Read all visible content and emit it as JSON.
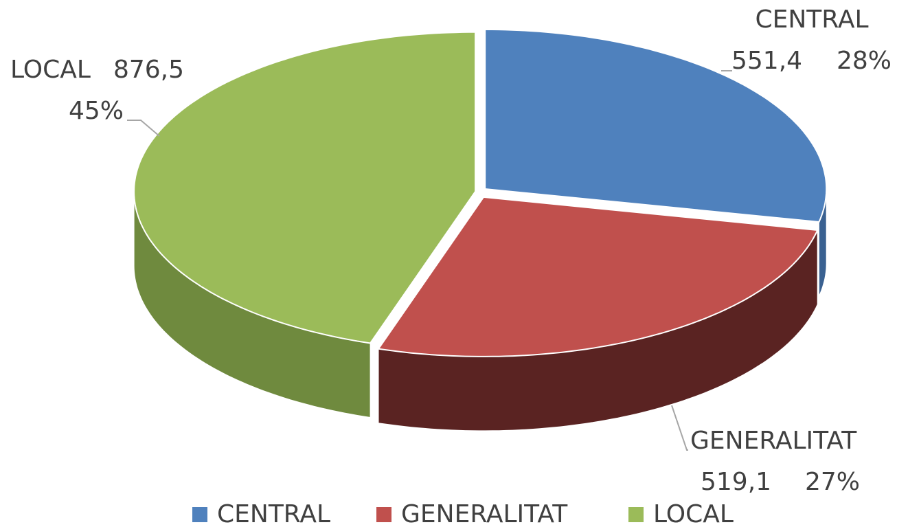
{
  "chart_data": {
    "type": "pie3d",
    "categories": [
      "CENTRAL",
      "GENERALITAT",
      "LOCAL"
    ],
    "values": [
      551.4,
      519.1,
      876.5
    ],
    "value_labels": [
      "551,4",
      "519,1",
      "876,5"
    ],
    "percents": [
      28,
      27,
      45
    ],
    "percent_labels": [
      "28%",
      "27%",
      "45%"
    ],
    "colors": [
      "#4f81bd",
      "#c0504d",
      "#9bbb59"
    ],
    "side_colors": [
      "#3a6191",
      "#5a2322",
      "#6f8a3e"
    ],
    "legend": "bottom"
  }
}
